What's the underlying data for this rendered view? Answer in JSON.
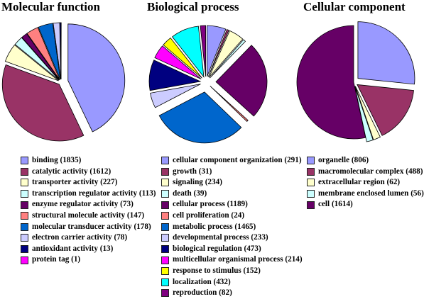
{
  "chart_data": [
    {
      "type": "pie",
      "title": "Molecular function",
      "slices": [
        {
          "label": "binding (1835)",
          "value": 1835,
          "color": "#9999ff"
        },
        {
          "label": "catalytic activity (1612)",
          "value": 1612,
          "color": "#993366"
        },
        {
          "label": "transporter activity (227)",
          "value": 227,
          "color": "#ffffcc"
        },
        {
          "label": "transcription regulator activity (113)",
          "value": 113,
          "color": "#ccffff"
        },
        {
          "label": "enzyme regulator activity (73)",
          "value": 73,
          "color": "#660066"
        },
        {
          "label": "structural molecule activity (147)",
          "value": 147,
          "color": "#ff8080"
        },
        {
          "label": "molecular transducer activity (178)",
          "value": 178,
          "color": "#0066cc"
        },
        {
          "label": "electron carrier activity (78)",
          "value": 78,
          "color": "#ccccff"
        },
        {
          "label": "antioxidant activity (13)",
          "value": 13,
          "color": "#000080"
        },
        {
          "label": "protein tag (1)",
          "value": 1,
          "color": "#ff00ff"
        }
      ]
    },
    {
      "type": "pie",
      "title": "Biological process",
      "slices": [
        {
          "label": "cellular component organization (291)",
          "value": 291,
          "color": "#9999ff"
        },
        {
          "label": "growth (31)",
          "value": 31,
          "color": "#993366"
        },
        {
          "label": "signaling (234)",
          "value": 234,
          "color": "#ffffcc"
        },
        {
          "label": "death (39)",
          "value": 39,
          "color": "#ccffff"
        },
        {
          "label": "cellular process (1189)",
          "value": 1189,
          "color": "#660066"
        },
        {
          "label": "cell proliferation (24)",
          "value": 24,
          "color": "#ff8080"
        },
        {
          "label": "metabolic process (1465)",
          "value": 1465,
          "color": "#0066cc"
        },
        {
          "label": "developmental process (233)",
          "value": 233,
          "color": "#ccccff"
        },
        {
          "label": "biological regulation (473)",
          "value": 473,
          "color": "#000080"
        },
        {
          "label": "multicellular organismal process (214)",
          "value": 214,
          "color": "#ff00ff"
        },
        {
          "label": "response to stimulus (152)",
          "value": 152,
          "color": "#ffff00"
        },
        {
          "label": "localization (432)",
          "value": 432,
          "color": "#00ffff"
        },
        {
          "label": "reproduction (82)",
          "value": 82,
          "color": "#800080"
        }
      ]
    },
    {
      "type": "pie",
      "title": "Cellular component",
      "slices": [
        {
          "label": "organelle (806)",
          "value": 806,
          "color": "#9999ff"
        },
        {
          "label": "macromolecular complex (488)",
          "value": 488,
          "color": "#993366"
        },
        {
          "label": "extracellular region (62)",
          "value": 62,
          "color": "#ffffcc"
        },
        {
          "label": "membrane enclosed lumen (56)",
          "value": 56,
          "color": "#ccffff"
        },
        {
          "label": "cell (1614)",
          "value": 1614,
          "color": "#660066"
        }
      ]
    }
  ]
}
